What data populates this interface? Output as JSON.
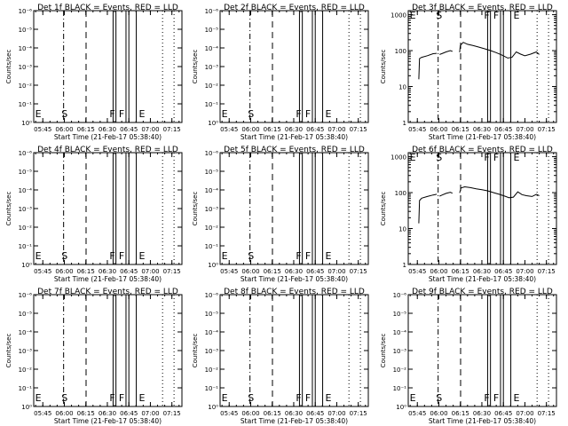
{
  "chart_data": [
    {
      "type": "line",
      "title": "Det 1f BLACK = Events, RED = LLD",
      "xlabel": "Start Time (21-Feb-17 05:38:40)",
      "ylabel": "Counts/sec",
      "yscale": "log",
      "y_tick_labels": [
        "10⁰",
        "10⁻¹",
        "10⁻²",
        "10⁻³",
        "10⁻⁴",
        "10⁻⁵",
        "10⁻⁶"
      ],
      "x_tick_labels": [
        "05:45",
        "06:00",
        "06:15",
        "06:30",
        "06:45",
        "07:00",
        "07:15"
      ],
      "markers": [
        "E",
        "S",
        "F",
        "F",
        "E"
      ],
      "series": []
    },
    {
      "type": "line",
      "title": "Det 2f BLACK = Events, RED = LLD",
      "xlabel": "Start Time (21-Feb-17 05:38:40)",
      "ylabel": "Counts/sec",
      "yscale": "log",
      "y_tick_labels": [
        "10⁰",
        "10⁻¹",
        "10⁻²",
        "10⁻³",
        "10⁻⁴",
        "10⁻⁵",
        "10⁻⁶"
      ],
      "x_tick_labels": [
        "05:45",
        "06:00",
        "06:15",
        "06:30",
        "06:45",
        "07:00",
        "07:15"
      ],
      "markers": [
        "E",
        "S",
        "F",
        "F",
        "E"
      ],
      "series": []
    },
    {
      "type": "line",
      "title": "Det 3f BLACK = Events, RED = LLD",
      "xlabel": "Start Time (21-Feb-17 05:38:40)",
      "ylabel": "Counts/sec",
      "yscale": "log",
      "y_tick_labels": [
        "1",
        "10",
        "100",
        "1000"
      ],
      "x_tick_labels": [
        "05:45",
        "06:00",
        "06:15",
        "06:30",
        "06:45",
        "07:00",
        "07:15"
      ],
      "markers": [
        "E",
        "S",
        "F",
        "F",
        "E"
      ],
      "series": [
        {
          "color": "#000000",
          "segments": [
            [
              [
                "05:46:00",
                16
              ],
              [
                "05:46:30",
                60
              ],
              [
                "05:48:00",
                65
              ],
              [
                "05:52:00",
                72
              ],
              [
                "05:56:00",
                82
              ],
              [
                "05:58:30",
                84
              ]
            ],
            [
              [
                "06:00:30",
                78
              ],
              [
                "06:02:00",
                82
              ],
              [
                "06:05:00",
                92
              ],
              [
                "06:08:00",
                100
              ],
              [
                "06:09:30",
                95
              ]
            ],
            [
              [
                "06:14:30",
                90
              ],
              [
                "06:15:00",
                140
              ],
              [
                "06:17:00",
                170
              ],
              [
                "06:20:00",
                150
              ],
              [
                "06:24:00",
                138
              ],
              [
                "06:28:00",
                125
              ],
              [
                "06:32:00",
                112
              ],
              [
                "06:36:00",
                100
              ],
              [
                "06:40:00",
                88
              ],
              [
                "06:44:00",
                75
              ],
              [
                "06:48:00",
                62
              ],
              [
                "06:51:00",
                65
              ],
              [
                "06:54:00",
                92
              ],
              [
                "06:57:00",
                80
              ],
              [
                "07:00:00",
                72
              ],
              [
                "07:04:00",
                80
              ],
              [
                "07:08:00",
                92
              ],
              [
                "07:10:00",
                78
              ]
            ]
          ]
        }
      ]
    },
    {
      "type": "line",
      "title": "Det 4f BLACK = Events, RED = LLD",
      "xlabel": "Start Time (21-Feb-17 05:38:40)",
      "ylabel": "Counts/sec",
      "yscale": "log",
      "y_tick_labels": [
        "10⁰",
        "10⁻¹",
        "10⁻²",
        "10⁻³",
        "10⁻⁴",
        "10⁻⁵",
        "10⁻⁶"
      ],
      "x_tick_labels": [
        "05:45",
        "06:00",
        "06:15",
        "06:30",
        "06:45",
        "07:00",
        "07:15"
      ],
      "markers": [
        "E",
        "S",
        "F",
        "F",
        "E"
      ],
      "series": []
    },
    {
      "type": "line",
      "title": "Det 5f BLACK = Events, RED = LLD",
      "xlabel": "Start Time (21-Feb-17 05:38:40)",
      "ylabel": "Counts/sec",
      "yscale": "log",
      "y_tick_labels": [
        "10⁰",
        "10⁻¹",
        "10⁻²",
        "10⁻³",
        "10⁻⁴",
        "10⁻⁵",
        "10⁻⁶"
      ],
      "x_tick_labels": [
        "05:45",
        "06:00",
        "06:15",
        "06:30",
        "06:45",
        "07:00",
        "07:15"
      ],
      "markers": [
        "E",
        "S",
        "F",
        "F",
        "E"
      ],
      "series": []
    },
    {
      "type": "line",
      "title": "Det 6f BLACK = Events, RED = LLD",
      "xlabel": "Start Time (21-Feb-17 05:38:40)",
      "ylabel": "Counts/sec",
      "yscale": "log",
      "y_tick_labels": [
        "1",
        "10",
        "100",
        "1000"
      ],
      "x_tick_labels": [
        "05:45",
        "06:00",
        "06:15",
        "06:30",
        "06:45",
        "07:00",
        "07:15"
      ],
      "markers": [
        "E",
        "S",
        "F",
        "F",
        "E"
      ],
      "series": [
        {
          "color": "#000000",
          "segments": [
            [
              [
                "05:46:00",
                14
              ],
              [
                "05:46:30",
                60
              ],
              [
                "05:48:00",
                70
              ],
              [
                "05:52:00",
                78
              ],
              [
                "05:56:00",
                86
              ],
              [
                "05:58:30",
                90
              ]
            ],
            [
              [
                "06:00:30",
                80
              ],
              [
                "06:02:00",
                85
              ],
              [
                "06:05:00",
                95
              ],
              [
                "06:08:00",
                102
              ],
              [
                "06:09:30",
                96
              ]
            ],
            [
              [
                "06:14:30",
                98
              ],
              [
                "06:15:30",
                135
              ],
              [
                "06:18:00",
                145
              ],
              [
                "06:22:00",
                138
              ],
              [
                "06:26:00",
                128
              ],
              [
                "06:30:00",
                120
              ],
              [
                "06:34:00",
                112
              ],
              [
                "06:38:00",
                100
              ],
              [
                "06:42:00",
                90
              ],
              [
                "06:46:00",
                80
              ],
              [
                "06:49:00",
                72
              ],
              [
                "06:52:00",
                75
              ],
              [
                "06:55:00",
                105
              ],
              [
                "06:58:00",
                88
              ],
              [
                "07:01:00",
                82
              ],
              [
                "07:05:00",
                78
              ],
              [
                "07:08:00",
                90
              ],
              [
                "07:10:00",
                82
              ]
            ]
          ]
        }
      ]
    },
    {
      "type": "line",
      "title": "Det 7f BLACK = Events, RED = LLD",
      "xlabel": "Start Time (21-Feb-17 05:38:40)",
      "ylabel": "Counts/sec",
      "yscale": "log",
      "y_tick_labels": [
        "10⁰",
        "10⁻¹",
        "10⁻²",
        "10⁻³",
        "10⁻⁴",
        "10⁻⁵",
        "10⁻⁶"
      ],
      "x_tick_labels": [
        "05:45",
        "06:00",
        "06:15",
        "06:30",
        "06:45",
        "07:00",
        "07:15"
      ],
      "markers": [
        "E",
        "S",
        "F",
        "F",
        "E"
      ],
      "series": []
    },
    {
      "type": "line",
      "title": "Det 8f BLACK = Events, RED = LLD",
      "xlabel": "Start Time (21-Feb-17 05:38:40)",
      "ylabel": "Counts/sec",
      "yscale": "log",
      "y_tick_labels": [
        "10⁰",
        "10⁻¹",
        "10⁻²",
        "10⁻³",
        "10⁻⁴",
        "10⁻⁵",
        "10⁻⁶"
      ],
      "x_tick_labels": [
        "05:45",
        "06:00",
        "06:15",
        "06:30",
        "06:45",
        "07:00",
        "07:15"
      ],
      "markers": [
        "E",
        "S",
        "F",
        "F",
        "E"
      ],
      "series": []
    },
    {
      "type": "line",
      "title": "Det 9f BLACK = Events, RED = LLD",
      "xlabel": "Start Time (21-Feb-17 05:38:40)",
      "ylabel": "Counts/sec",
      "yscale": "log",
      "y_tick_labels": [
        "10⁰",
        "10⁻¹",
        "10⁻²",
        "10⁻³",
        "10⁻⁴",
        "10⁻⁵",
        "10⁻⁶"
      ],
      "x_tick_labels": [
        "05:45",
        "06:00",
        "06:15",
        "06:30",
        "06:45",
        "07:00",
        "07:15"
      ],
      "markers": [
        "E",
        "S",
        "F",
        "F",
        "E"
      ],
      "series": []
    }
  ]
}
